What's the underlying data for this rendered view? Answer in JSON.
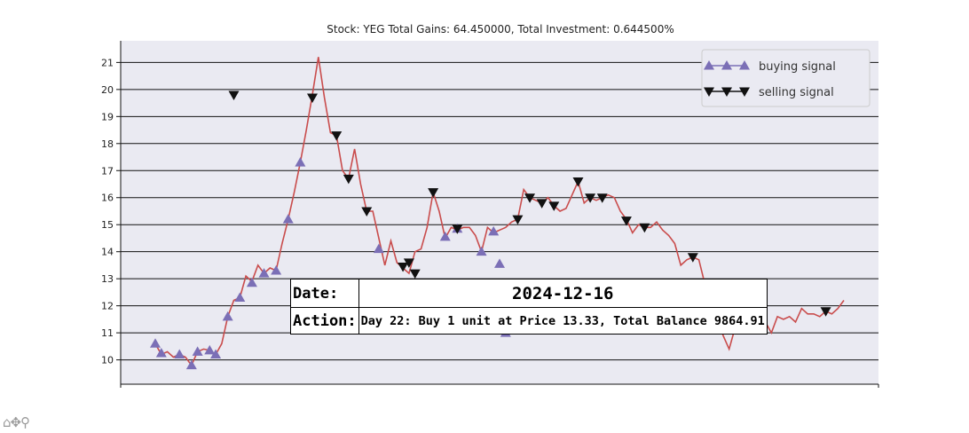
{
  "chart_data": {
    "type": "line",
    "title": "Stock: YEG Total Gains: 64.450000, Total Investment: 0.644500%",
    "xlabel": "",
    "ylabel": "",
    "ylim": [
      9.1,
      21.8
    ],
    "yticks": [
      10,
      11,
      12,
      13,
      14,
      15,
      16,
      17,
      18,
      19,
      20,
      21
    ],
    "grid": "horizontal",
    "legend_position": "top-right",
    "colors": {
      "line": "#c94c4c",
      "buy": "#7b6fb6",
      "sell": "#111111",
      "plot_bg": "#eaeaf2"
    },
    "series": [
      {
        "name": "",
        "values": [
          10.6,
          10.2,
          10.3,
          10.1,
          10.2,
          10.1,
          9.8,
          10.3,
          10.4,
          10.35,
          10.2,
          10.6,
          11.6,
          12.2,
          12.3,
          13.1,
          12.9,
          13.5,
          13.2,
          13.4,
          13.3,
          14.3,
          15.2,
          16.2,
          17.3,
          18.5,
          19.8,
          21.2,
          19.7,
          18.4,
          18.3,
          17.0,
          16.7,
          17.8,
          16.5,
          15.5,
          15.5,
          14.5,
          13.5,
          14.4,
          13.6,
          13.4,
          13.2,
          14.0,
          14.1,
          14.9,
          16.2,
          15.5,
          14.5,
          14.9,
          14.8,
          14.9,
          14.9,
          14.6,
          14.0,
          14.9,
          14.7,
          14.8,
          14.9,
          15.1,
          15.2,
          16.3,
          16.0,
          15.9,
          15.8,
          16.0,
          15.7,
          15.5,
          15.6,
          16.1,
          16.6,
          15.8,
          16.0,
          15.9,
          16.0,
          16.1,
          16.0,
          15.5,
          15.2,
          14.7,
          15.0,
          14.9,
          14.9,
          15.1,
          14.8,
          14.6,
          14.3,
          13.5,
          13.7,
          13.8,
          13.7,
          12.8,
          12.2,
          11.6,
          10.9,
          10.4,
          11.2,
          11.7,
          11.6,
          11.3,
          11.5,
          11.4,
          11.0,
          11.6,
          11.5,
          11.6,
          11.4,
          11.9,
          11.7,
          11.7,
          11.6,
          11.8,
          11.7,
          11.9,
          12.2
        ]
      }
    ],
    "buy_signals": [
      [
        0,
        10.6
      ],
      [
        1,
        10.25
      ],
      [
        2,
        10.2
      ],
      [
        3,
        9.8
      ],
      [
        4,
        10.3
      ],
      [
        5,
        10.35
      ],
      [
        6,
        10.2
      ],
      [
        7,
        11.6
      ],
      [
        8,
        12.3
      ],
      [
        9,
        12.85
      ],
      [
        10,
        13.2
      ],
      [
        11,
        13.3
      ],
      [
        12,
        15.2
      ],
      [
        13,
        17.3
      ],
      [
        14,
        14.1
      ],
      [
        15,
        14.55
      ],
      [
        16,
        14.85
      ],
      [
        17,
        14.0
      ],
      [
        18,
        14.75
      ],
      [
        19,
        13.55
      ],
      [
        20,
        11.0
      ],
      [
        21,
        11.4
      ]
    ],
    "sell_signals": [
      [
        0,
        19.8
      ],
      [
        1,
        19.7
      ],
      [
        2,
        18.3
      ],
      [
        3,
        16.7
      ],
      [
        4,
        15.5
      ],
      [
        5,
        13.45
      ],
      [
        6,
        13.6
      ],
      [
        7,
        13.2
      ],
      [
        8,
        16.2
      ],
      [
        9,
        14.85
      ],
      [
        10,
        15.2
      ],
      [
        11,
        16.0
      ],
      [
        12,
        15.8
      ],
      [
        13,
        15.7
      ],
      [
        14,
        16.6
      ],
      [
        15,
        16.0
      ],
      [
        16,
        16.0
      ],
      [
        17,
        15.15
      ],
      [
        18,
        14.9
      ],
      [
        19,
        13.8
      ],
      [
        20,
        11.85
      ],
      [
        21,
        11.8
      ]
    ],
    "legend": [
      {
        "label": "buying signal",
        "marker": "triangle-up"
      },
      {
        "label": "selling signal",
        "marker": "triangle-down"
      }
    ]
  },
  "tooltip": {
    "date_label": "Date:",
    "date_value": "2024-12-16",
    "action_label": "Action:",
    "action_value": "Day 22: Buy 1 unit at Price 13.33, Total Balance 9864.91"
  },
  "toolbar": {
    "icons": [
      "home-icon",
      "pan-icon",
      "zoom-icon"
    ]
  }
}
